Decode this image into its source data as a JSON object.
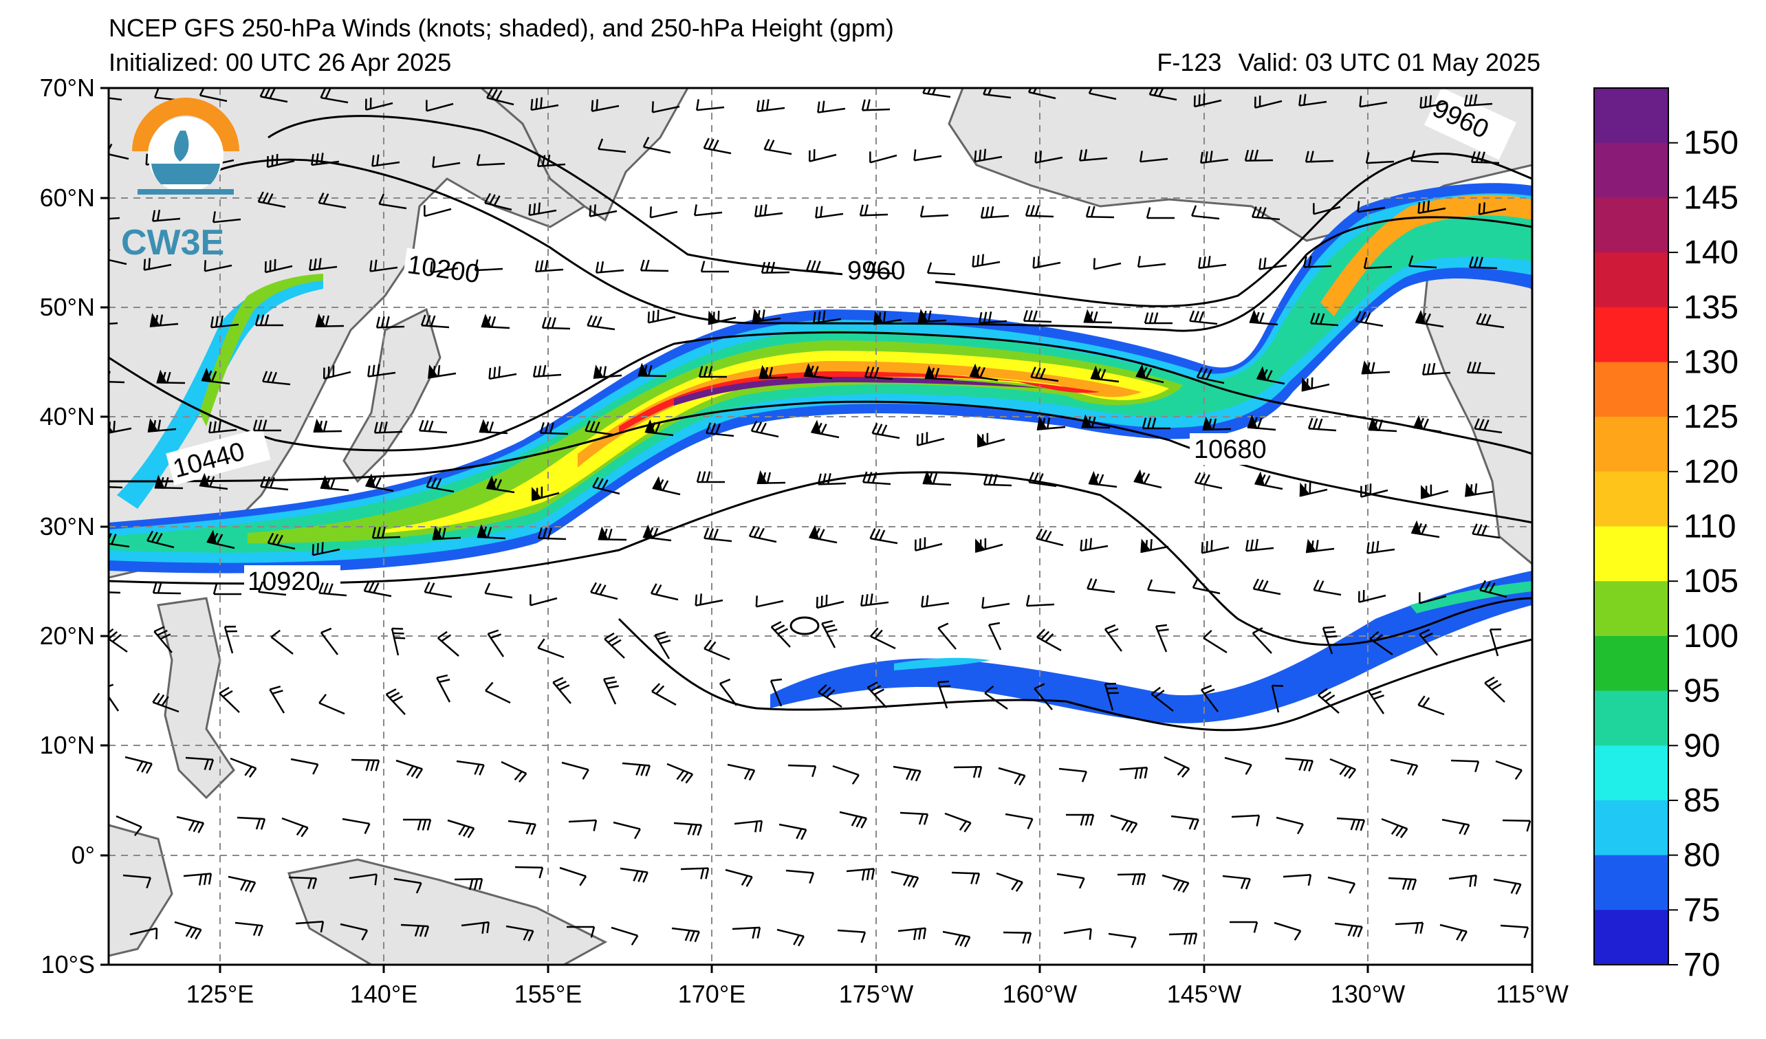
{
  "title": {
    "line1": "NCEP GFS 250-hPa Winds (knots; shaded), and 250-hPa Height (gpm)",
    "initialized": "Initialized: 00 UTC 26 Apr 2025",
    "forecast_hour": "F-123",
    "valid": "Valid: 03 UTC 01 May 2025"
  },
  "logo": {
    "text": "CW3E"
  },
  "map": {
    "lat_labels": [
      "70°N",
      "60°N",
      "50°N",
      "40°N",
      "30°N",
      "20°N",
      "10°N",
      "0°",
      "10°S"
    ],
    "lon_labels": [
      "125°E",
      "140°E",
      "155°E",
      "170°E",
      "175°W",
      "160°W",
      "145°W",
      "130°W",
      "115°W"
    ],
    "contour_labels": [
      "9960",
      "9960",
      "10200",
      "10440",
      "10680",
      "10920"
    ]
  },
  "colorbar": {
    "labels": [
      "150",
      "145",
      "140",
      "135",
      "130",
      "125",
      "120",
      "110",
      "105",
      "100",
      "95",
      "90",
      "85",
      "80",
      "75",
      "70"
    ],
    "colors": [
      "#6a1e87",
      "#8a1c78",
      "#a71a5c",
      "#d01a3a",
      "#ff2020",
      "#ff7a1a",
      "#ffa51a",
      "#ffc41a",
      "#ffff1a",
      "#7ed321",
      "#1fbf2f",
      "#20d59c",
      "#1fefe8",
      "#1fc8f5",
      "#1b5cf0",
      "#1f1fd4"
    ]
  }
}
